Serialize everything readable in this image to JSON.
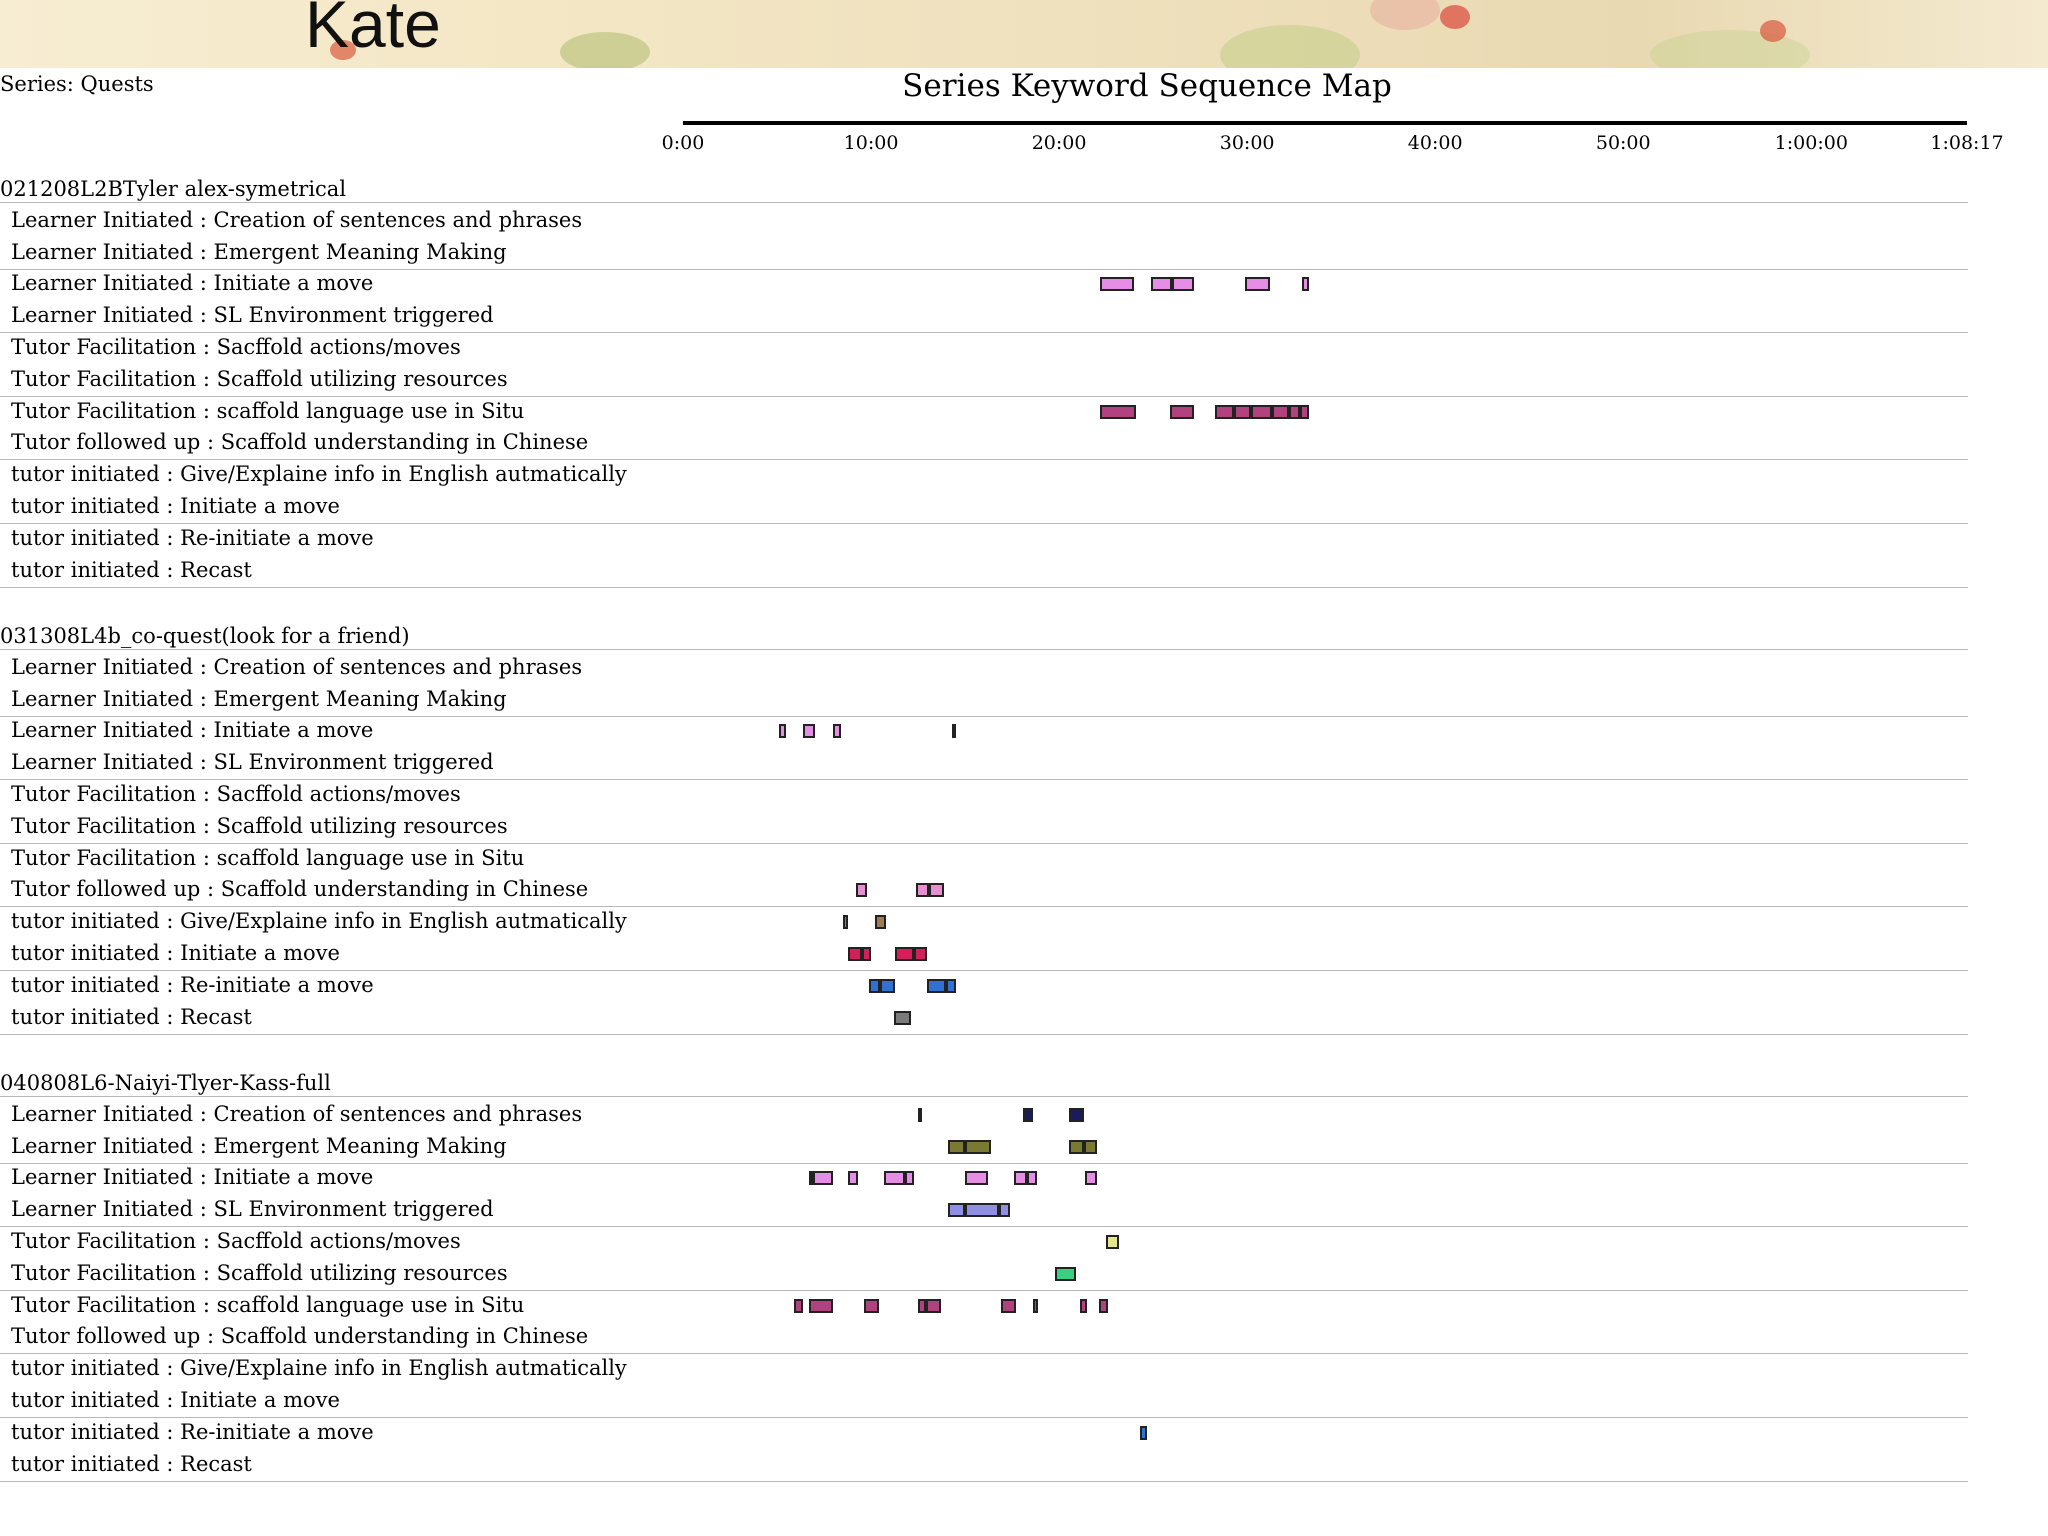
{
  "header": {
    "title": "Kate"
  },
  "series_label": "Series: Quests",
  "chart_data": {
    "type": "timeline",
    "title": "Series Keyword Sequence Map",
    "x_ticks": [
      "0:00",
      "10:00",
      "20:00",
      "30:00",
      "40:00",
      "50:00",
      "1:00:00",
      "1:08:17"
    ],
    "x_tick_minutes": [
      0,
      10,
      20,
      30,
      40,
      50,
      60,
      68.28
    ],
    "xlim": [
      0,
      68.28
    ],
    "categories": [
      "Learner Initiated : Creation of sentences and phrases",
      "Learner Initiated : Emergent Meaning Making",
      "Learner Initiated : Initiate a move",
      "Learner Initiated : SL Environment triggered",
      "Tutor Facilitation : Sacffold actions/moves",
      "Tutor Facilitation : Scaffold utilizing resources",
      "Tutor Facilitation : scaffold language use in Situ",
      "Tutor followed up : Scaffold understanding in Chinese",
      "tutor initiated : Give/Explaine info in English autmatically",
      "tutor initiated : Initiate a move",
      "tutor initiated : Re-initiate a move",
      "tutor initiated : Recast"
    ],
    "category_colors": [
      "#1a1a5c",
      "#7a7a32",
      "#e68de6",
      "#8f8fe6",
      "#e6e68f",
      "#3ccf7f",
      "#b2427f",
      "#e68fd0",
      "#a07a52",
      "#d61f5a",
      "#2f72d6",
      "#7a7a7a"
    ],
    "groups": [
      {
        "name": "021208L2BTyler alex-symetrical",
        "segments": [
          {
            "row": 2,
            "start": 22.2,
            "end": 24.0
          },
          {
            "row": 2,
            "start": 24.9,
            "end": 26.0
          },
          {
            "row": 2,
            "start": 26.0,
            "end": 27.2
          },
          {
            "row": 2,
            "start": 29.9,
            "end": 31.2
          },
          {
            "row": 2,
            "start": 32.9,
            "end": 33.3
          },
          {
            "row": 6,
            "start": 22.2,
            "end": 24.1
          },
          {
            "row": 6,
            "start": 25.9,
            "end": 27.2
          },
          {
            "row": 6,
            "start": 28.3,
            "end": 29.3
          },
          {
            "row": 6,
            "start": 29.3,
            "end": 30.2
          },
          {
            "row": 6,
            "start": 30.2,
            "end": 31.3
          },
          {
            "row": 6,
            "start": 31.3,
            "end": 32.2
          },
          {
            "row": 6,
            "start": 32.2,
            "end": 32.8
          },
          {
            "row": 6,
            "start": 32.8,
            "end": 33.3
          }
        ]
      },
      {
        "name": "031308L4b_co-quest(look for a friend)",
        "segments": [
          {
            "row": 2,
            "start": 5.1,
            "end": 5.5
          },
          {
            "row": 2,
            "start": 6.4,
            "end": 7.0
          },
          {
            "row": 2,
            "start": 8.0,
            "end": 8.4
          },
          {
            "row": 2,
            "start": 14.3,
            "end": 14.45
          },
          {
            "row": 7,
            "start": 9.2,
            "end": 9.8
          },
          {
            "row": 7,
            "start": 12.4,
            "end": 13.1
          },
          {
            "row": 7,
            "start": 13.1,
            "end": 13.9
          },
          {
            "row": 8,
            "start": 8.5,
            "end": 8.8
          },
          {
            "row": 8,
            "start": 10.2,
            "end": 10.8
          },
          {
            "row": 9,
            "start": 8.8,
            "end": 9.5
          },
          {
            "row": 9,
            "start": 9.5,
            "end": 10.0
          },
          {
            "row": 9,
            "start": 11.3,
            "end": 12.3
          },
          {
            "row": 9,
            "start": 12.3,
            "end": 13.0
          },
          {
            "row": 10,
            "start": 9.9,
            "end": 10.5
          },
          {
            "row": 10,
            "start": 10.5,
            "end": 11.3
          },
          {
            "row": 10,
            "start": 13.0,
            "end": 14.0
          },
          {
            "row": 10,
            "start": 14.0,
            "end": 14.5
          },
          {
            "row": 11,
            "start": 11.2,
            "end": 12.1
          }
        ]
      },
      {
        "name": "040808L6-Naiyi-Tlyer-Kass-full",
        "segments": [
          {
            "row": 0,
            "start": 12.5,
            "end": 12.65
          },
          {
            "row": 0,
            "start": 18.1,
            "end": 18.6
          },
          {
            "row": 0,
            "start": 20.5,
            "end": 21.3
          },
          {
            "row": 1,
            "start": 14.1,
            "end": 15.0
          },
          {
            "row": 1,
            "start": 15.0,
            "end": 16.4
          },
          {
            "row": 1,
            "start": 20.5,
            "end": 21.3
          },
          {
            "row": 1,
            "start": 21.3,
            "end": 22.0
          },
          {
            "row": 2,
            "start": 6.7,
            "end": 6.9
          },
          {
            "row": 2,
            "start": 6.9,
            "end": 8.0
          },
          {
            "row": 2,
            "start": 8.8,
            "end": 9.3
          },
          {
            "row": 2,
            "start": 10.7,
            "end": 11.8
          },
          {
            "row": 2,
            "start": 11.8,
            "end": 12.3
          },
          {
            "row": 2,
            "start": 15.0,
            "end": 16.2
          },
          {
            "row": 2,
            "start": 17.6,
            "end": 18.3
          },
          {
            "row": 2,
            "start": 18.3,
            "end": 18.8
          },
          {
            "row": 2,
            "start": 21.4,
            "end": 22.0
          },
          {
            "row": 3,
            "start": 14.1,
            "end": 15.0
          },
          {
            "row": 3,
            "start": 15.0,
            "end": 16.8
          },
          {
            "row": 3,
            "start": 16.8,
            "end": 17.4
          },
          {
            "row": 4,
            "start": 22.5,
            "end": 23.2
          },
          {
            "row": 5,
            "start": 19.8,
            "end": 20.9
          },
          {
            "row": 6,
            "start": 5.9,
            "end": 6.4
          },
          {
            "row": 6,
            "start": 6.7,
            "end": 8.0
          },
          {
            "row": 6,
            "start": 9.6,
            "end": 10.4
          },
          {
            "row": 6,
            "start": 12.5,
            "end": 12.9
          },
          {
            "row": 6,
            "start": 12.9,
            "end": 13.7
          },
          {
            "row": 6,
            "start": 16.9,
            "end": 17.7
          },
          {
            "row": 6,
            "start": 18.6,
            "end": 18.9
          },
          {
            "row": 6,
            "start": 21.1,
            "end": 21.5
          },
          {
            "row": 6,
            "start": 22.1,
            "end": 22.6
          },
          {
            "row": 10,
            "start": 24.3,
            "end": 24.7
          }
        ]
      }
    ]
  }
}
